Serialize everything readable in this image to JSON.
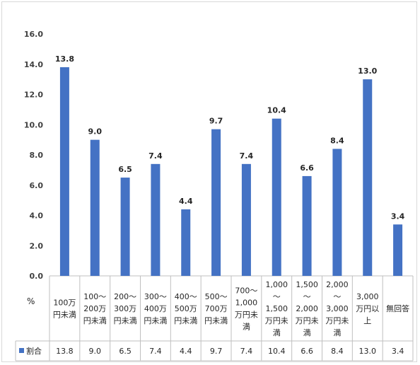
{
  "chart_data": {
    "type": "bar",
    "unit_label": "%",
    "categories": [
      [
        "100万",
        "円未満"
      ],
      [
        "100～",
        "200万",
        "円未満"
      ],
      [
        "200～",
        "300万",
        "円未満"
      ],
      [
        "300～",
        "400万",
        "円未満"
      ],
      [
        "400～",
        "500万",
        "円未満"
      ],
      [
        "500～",
        "700万",
        "円未満"
      ],
      [
        "700～",
        "1,000",
        "万円未",
        "満"
      ],
      [
        "1,000",
        "～",
        "1,500",
        "万円未",
        "満"
      ],
      [
        "1,500",
        "～",
        "2,000",
        "万円未",
        "満"
      ],
      [
        "2,000",
        "～",
        "3,000",
        "万円未",
        "満"
      ],
      [
        "3,000",
        "万円以",
        "上"
      ],
      [
        "無回答"
      ]
    ],
    "series": [
      {
        "name": "割合",
        "color": "#4472c4",
        "values": [
          13.8,
          9.0,
          6.5,
          7.4,
          4.4,
          9.7,
          7.4,
          10.4,
          6.6,
          8.4,
          13.0,
          3.4
        ],
        "value_labels": [
          "13.8",
          "9.0",
          "6.5",
          "7.4",
          "4.4",
          "9.7",
          "7.4",
          "10.4",
          "6.6",
          "8.4",
          "13.0",
          "3.4"
        ]
      }
    ],
    "ylim": [
      0,
      16
    ],
    "yticks": [
      "0.0",
      "2.0",
      "4.0",
      "6.0",
      "8.0",
      "10.0",
      "12.0",
      "14.0",
      "16.0"
    ],
    "grid": false,
    "legend": "data-table"
  }
}
